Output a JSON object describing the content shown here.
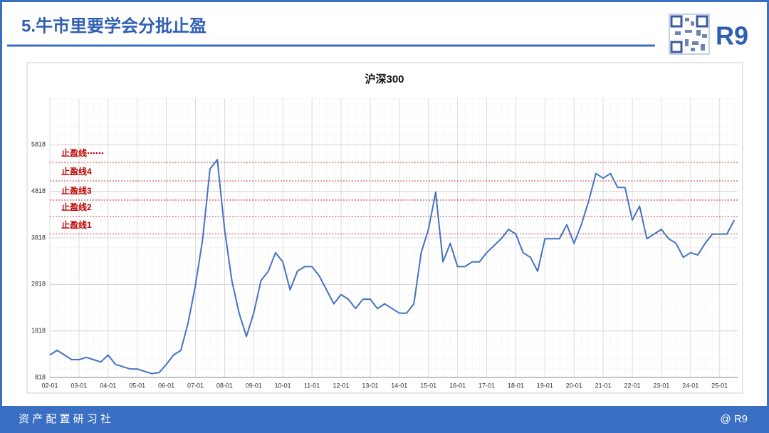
{
  "slide": {
    "title": "5.牛市里要学会分批止盈",
    "brand": "R9",
    "footer_left": "资 产 配 置 研 习 社",
    "footer_right": "@ R9"
  },
  "chart_data": {
    "type": "line",
    "title": "沪深300",
    "color": "#4472c4",
    "categories": [
      "02-01",
      null,
      null,
      null,
      "03-01",
      null,
      null,
      null,
      "04-01",
      null,
      null,
      null,
      "05-01",
      null,
      null,
      null,
      "06-01",
      null,
      null,
      null,
      "07-01",
      null,
      null,
      null,
      "08-01",
      null,
      null,
      null,
      "09-01",
      null,
      null,
      null,
      "10-01",
      null,
      null,
      null,
      "11-01",
      null,
      null,
      null,
      "12-01",
      null,
      null,
      null,
      "13-01",
      null,
      null,
      null,
      "14-01",
      null,
      null,
      null,
      "15-01",
      null,
      null,
      null,
      "16-01",
      null,
      null,
      null,
      "17-01",
      null,
      null,
      null,
      "18-01",
      null,
      null,
      null,
      "19-01",
      null,
      null,
      null,
      "20-01",
      null,
      null,
      null,
      "21-01",
      null,
      null,
      null,
      "22-01",
      null,
      null,
      null,
      "23-01",
      null,
      null,
      null,
      "24-01",
      null,
      null,
      null,
      "25-01",
      null,
      null
    ],
    "values": [
      1300,
      1400,
      1300,
      1200,
      1200,
      1250,
      1200,
      1150,
      1300,
      1100,
      1050,
      1000,
      1000,
      950,
      900,
      920,
      1100,
      1300,
      1400,
      2000,
      2800,
      3800,
      5300,
      5500,
      4000,
      2900,
      2200,
      1700,
      2200,
      2900,
      3100,
      3500,
      3300,
      2700,
      3100,
      3200,
      3200,
      3000,
      2700,
      2400,
      2600,
      2500,
      2300,
      2500,
      2500,
      2300,
      2400,
      2300,
      2200,
      2200,
      2400,
      3500,
      4000,
      4800,
      3300,
      3700,
      3200,
      3200,
      3300,
      3300,
      3500,
      3650,
      3800,
      4000,
      3900,
      3500,
      3400,
      3100,
      3800,
      3800,
      3800,
      4100,
      3700,
      4100,
      4600,
      5200,
      5100,
      5200,
      4900,
      4900,
      4200,
      4500,
      3800,
      3900,
      4000,
      3800,
      3700,
      3400,
      3500,
      3450,
      3700,
      3900,
      3900,
      3900,
      4200
    ],
    "ylim": [
      818,
      6818
    ],
    "yticks": [
      818,
      1818,
      2818,
      3818,
      4818,
      5818
    ],
    "grid": true,
    "reference_lines": [
      {
        "label": "止盈线⋯⋯",
        "value": 5440
      },
      {
        "label": "止盈线4",
        "value": 5042
      },
      {
        "label": "止盈线3",
        "value": 4630
      },
      {
        "label": "止盈线2",
        "value": 4277
      },
      {
        "label": "止盈线1",
        "value": 3900
      }
    ],
    "reference_color": "#c00000"
  }
}
